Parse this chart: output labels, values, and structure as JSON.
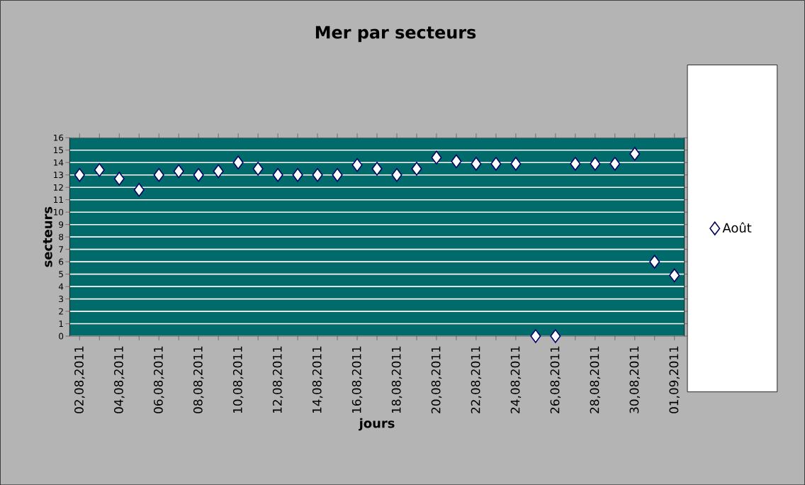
{
  "chart_data": {
    "type": "scatter",
    "title": "Mer par secteurs",
    "xlabel": "jours",
    "ylabel": "secteurs",
    "categories": [
      "02,08,2011",
      null,
      "04,08,2011",
      null,
      "06,08,2011",
      null,
      "08,08,2011",
      null,
      "10,08,2011",
      null,
      "12,08,2011",
      null,
      "14,08,2011",
      null,
      "16,08,2011",
      null,
      "18,08,2011",
      null,
      "20,08,2011",
      null,
      "22,08,2011",
      null,
      "24,08,2011",
      null,
      "26,08,2011",
      null,
      "28,08,2011",
      null,
      "30,08,2011",
      null,
      "01,09,2011"
    ],
    "series": [
      {
        "name": "Août",
        "color": "#ffffff",
        "values": [
          13,
          13.4,
          12.7,
          11.8,
          13,
          13.3,
          13,
          13.3,
          14,
          13.5,
          13,
          13,
          13,
          13,
          13.8,
          13.5,
          13,
          13.5,
          14.4,
          14.1,
          13.9,
          13.9,
          13.9,
          0,
          0,
          13.9,
          13.9,
          13.9,
          14.7,
          6,
          4.9
        ]
      }
    ],
    "ylim": [
      0,
      16
    ],
    "yticks": [
      0,
      1,
      2,
      3,
      4,
      5,
      6,
      7,
      8,
      9,
      10,
      11,
      12,
      13,
      14,
      15,
      16
    ],
    "grid": "y",
    "legend": "right",
    "marker": "diamond"
  }
}
